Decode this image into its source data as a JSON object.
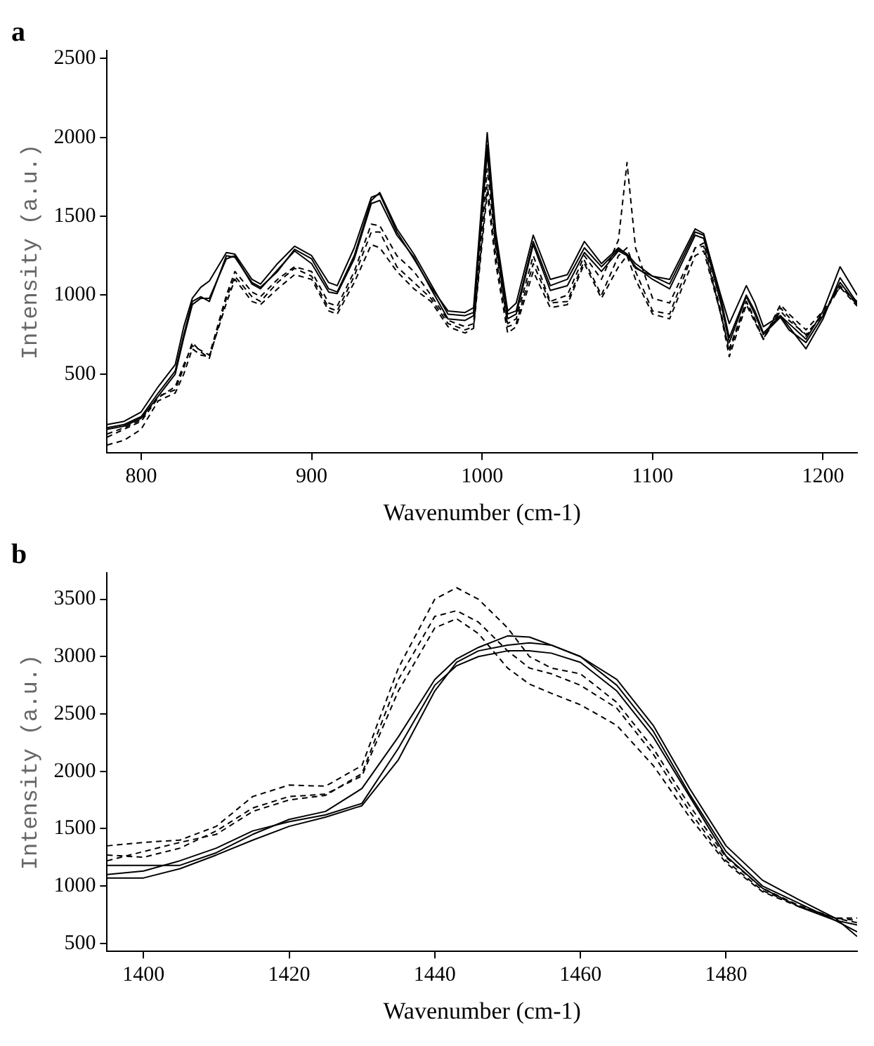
{
  "chart_data": [
    {
      "type": "line",
      "title": "a",
      "xlabel": "Wavenumber (cm-1)",
      "ylabel": "Intensity (a.u.)",
      "xlim": [
        780,
        1220
      ],
      "xticks": [
        800,
        900,
        1000,
        1100,
        1200
      ],
      "ylim": [
        0,
        2550
      ],
      "yticks": [
        500,
        1000,
        1500,
        2000,
        2500
      ],
      "grid": false,
      "legend": false,
      "marker": "none",
      "x": [
        780,
        790,
        800,
        810,
        820,
        825,
        830,
        835,
        840,
        850,
        855,
        865,
        870,
        880,
        890,
        900,
        910,
        915,
        925,
        935,
        940,
        950,
        960,
        970,
        980,
        990,
        995,
        1003,
        1008,
        1015,
        1020,
        1030,
        1040,
        1050,
        1060,
        1070,
        1080,
        1085,
        1090,
        1100,
        1110,
        1125,
        1130,
        1140,
        1145,
        1155,
        1160,
        1165,
        1175,
        1180,
        1190,
        1200,
        1210,
        1220
      ],
      "series": [
        {
          "color": "#000000",
          "line_style": "solid",
          "values": [
            180,
            200,
            260,
            420,
            560,
            800,
            980,
            1050,
            1090,
            1270,
            1260,
            1100,
            1070,
            1200,
            1310,
            1250,
            1080,
            1060,
            1300,
            1620,
            1640,
            1400,
            1230,
            1050,
            900,
            890,
            920,
            2030,
            1400,
            900,
            950,
            1380,
            1100,
            1130,
            1340,
            1200,
            1300,
            1260,
            1170,
            1120,
            1070,
            1400,
            1380,
            1000,
            820,
            1060,
            950,
            800,
            870,
            820,
            720,
            900,
            1180,
            1000
          ]
        },
        {
          "color": "#000000",
          "line_style": "solid",
          "values": [
            160,
            180,
            230,
            380,
            520,
            750,
            960,
            990,
            960,
            1250,
            1240,
            1080,
            1050,
            1150,
            1290,
            1230,
            1040,
            1020,
            1250,
            1600,
            1650,
            1420,
            1260,
            1070,
            880,
            870,
            890,
            1950,
            1350,
            880,
            900,
            1340,
            1060,
            1100,
            1300,
            1180,
            1290,
            1260,
            1200,
            1120,
            1100,
            1420,
            1390,
            980,
            730,
            1000,
            900,
            760,
            870,
            800,
            660,
            850,
            1110,
            950
          ]
        },
        {
          "color": "#000000",
          "line_style": "solid",
          "values": [
            150,
            170,
            220,
            360,
            500,
            730,
            940,
            980,
            980,
            1230,
            1250,
            1070,
            1040,
            1160,
            1280,
            1200,
            1020,
            1010,
            1230,
            1580,
            1600,
            1380,
            1240,
            1040,
            850,
            840,
            870,
            1900,
            1330,
            850,
            880,
            1320,
            1030,
            1060,
            1270,
            1150,
            1280,
            1250,
            1180,
            1100,
            1040,
            1380,
            1360,
            950,
            700,
            990,
            880,
            750,
            860,
            780,
            700,
            870,
            1080,
            940
          ]
        },
        {
          "color": "#000000",
          "line_style": "dashed",
          "values": [
            100,
            150,
            200,
            350,
            420,
            560,
            680,
            650,
            620,
            1000,
            1150,
            1020,
            990,
            1100,
            1180,
            1150,
            950,
            930,
            1150,
            1450,
            1440,
            1250,
            1150,
            1000,
            840,
            800,
            820,
            1800,
            1300,
            820,
            850,
            1250,
            960,
            1000,
            1250,
            1100,
            1350,
            1840,
            1300,
            980,
            950,
            1300,
            1330,
            900,
            640,
            960,
            850,
            720,
            920,
            860,
            740,
            880,
            1060,
            940
          ]
        },
        {
          "color": "#000000",
          "line_style": "dashed",
          "values": [
            120,
            160,
            210,
            360,
            400,
            540,
            700,
            640,
            600,
            980,
            1120,
            990,
            960,
            1080,
            1170,
            1120,
            920,
            900,
            1120,
            1400,
            1400,
            1180,
            1080,
            980,
            820,
            780,
            800,
            1700,
            1250,
            800,
            820,
            1200,
            950,
            960,
            1220,
            1000,
            1250,
            1300,
            1150,
            900,
            880,
            1300,
            1310,
            880,
            660,
            960,
            840,
            720,
            900,
            840,
            750,
            880,
            1050,
            960
          ]
        },
        {
          "color": "#000000",
          "line_style": "dashed",
          "values": [
            50,
            80,
            150,
            330,
            380,
            500,
            660,
            620,
            610,
            950,
            1100,
            960,
            940,
            1040,
            1130,
            1100,
            900,
            880,
            1080,
            1320,
            1300,
            1150,
            1040,
            960,
            800,
            760,
            790,
            1650,
            1200,
            760,
            800,
            1150,
            920,
            940,
            1200,
            980,
            1180,
            1250,
            1100,
            880,
            850,
            1250,
            1280,
            880,
            610,
            940,
            830,
            720,
            940,
            880,
            780,
            900,
            1050,
            930
          ]
        }
      ]
    },
    {
      "type": "line",
      "title": "b",
      "xlabel": "Wavenumber (cm-1)",
      "ylabel": "Intensity (a.u.)",
      "xlim": [
        1395,
        1498
      ],
      "xticks": [
        1400,
        1420,
        1440,
        1460,
        1480
      ],
      "ylim": [
        430,
        3730
      ],
      "yticks": [
        500,
        1000,
        1500,
        2000,
        2500,
        3000,
        3500
      ],
      "grid": false,
      "legend": false,
      "marker": "none",
      "x": [
        1395,
        1400,
        1405,
        1410,
        1415,
        1420,
        1425,
        1430,
        1435,
        1440,
        1443,
        1446,
        1450,
        1453,
        1456,
        1460,
        1465,
        1470,
        1475,
        1480,
        1485,
        1490,
        1495,
        1498
      ],
      "series": [
        {
          "color": "#000000",
          "line_style": "solid",
          "values": [
            1070,
            1070,
            1150,
            1270,
            1400,
            1520,
            1600,
            1700,
            2100,
            2700,
            2950,
            3050,
            3100,
            3120,
            3100,
            3000,
            2750,
            2350,
            1800,
            1300,
            1000,
            850,
            700,
            600
          ]
        },
        {
          "color": "#000000",
          "line_style": "solid",
          "values": [
            1180,
            1180,
            1180,
            1290,
            1450,
            1580,
            1650,
            1850,
            2300,
            2800,
            2980,
            3080,
            3180,
            3170,
            3100,
            3000,
            2800,
            2400,
            1850,
            1350,
            1050,
            880,
            720,
            560
          ]
        },
        {
          "color": "#000000",
          "line_style": "solid",
          "values": [
            1100,
            1130,
            1220,
            1330,
            1480,
            1560,
            1620,
            1720,
            2200,
            2750,
            2920,
            3000,
            3050,
            3050,
            3030,
            2950,
            2700,
            2300,
            1780,
            1260,
            980,
            820,
            700,
            660
          ]
        },
        {
          "color": "#000000",
          "line_style": "dashed",
          "values": [
            1350,
            1380,
            1400,
            1520,
            1780,
            1880,
            1870,
            2050,
            2900,
            3500,
            3600,
            3500,
            3250,
            3000,
            2900,
            2850,
            2600,
            2200,
            1700,
            1250,
            980,
            830,
            720,
            700
          ]
        },
        {
          "color": "#000000",
          "line_style": "dashed",
          "values": [
            1270,
            1250,
            1330,
            1480,
            1680,
            1780,
            1800,
            1960,
            2700,
            3250,
            3330,
            3200,
            2900,
            2760,
            2680,
            2580,
            2400,
            2050,
            1600,
            1200,
            950,
            820,
            720,
            680
          ]
        },
        {
          "color": "#000000",
          "line_style": "dashed",
          "values": [
            1220,
            1300,
            1380,
            1450,
            1650,
            1750,
            1790,
            1980,
            2800,
            3350,
            3400,
            3300,
            3050,
            2900,
            2850,
            2750,
            2550,
            2150,
            1650,
            1220,
            960,
            830,
            720,
            720
          ]
        }
      ]
    }
  ]
}
